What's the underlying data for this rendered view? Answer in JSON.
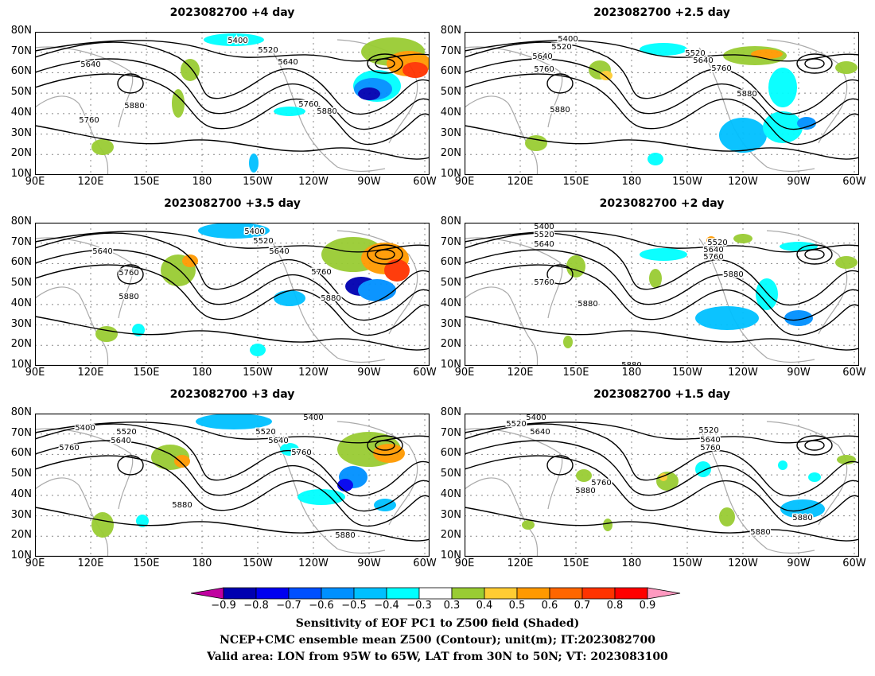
{
  "panels": [
    {
      "title": "2023082700  +4 day",
      "contour_labels": [
        "5400",
        "5520",
        "5640",
        "5640",
        "5880",
        "5760",
        "5760",
        "5880"
      ]
    },
    {
      "title": "2023082700  +2.5 day",
      "contour_labels": [
        "5400",
        "5520",
        "5640",
        "5760",
        "5520",
        "5640",
        "5760",
        "5880",
        "5880"
      ]
    },
    {
      "title": "2023082700  +3.5 day",
      "contour_labels": [
        "5400",
        "5520",
        "5640",
        "5640",
        "5760",
        "5880",
        "5760",
        "5880"
      ]
    },
    {
      "title": "2023082700  +2 day",
      "contour_labels": [
        "5400",
        "5520",
        "5640",
        "5520",
        "5640",
        "5760",
        "5760",
        "5880",
        "5880",
        "5880"
      ]
    },
    {
      "title": "2023082700  +3 day",
      "contour_labels": [
        "5400",
        "5520",
        "5640",
        "5760",
        "5520",
        "5640",
        "5400",
        "5760",
        "5880",
        "5880"
      ]
    },
    {
      "title": "2023082700  +1.5 day",
      "contour_labels": [
        "5520",
        "5400",
        "5640",
        "5520",
        "5640",
        "5760",
        "5760",
        "5880",
        "5880",
        "5880"
      ]
    }
  ],
  "axes": {
    "lat_ticks": [
      "80N",
      "70N",
      "60N",
      "50N",
      "40N",
      "30N",
      "20N",
      "10N"
    ],
    "lon_ticks": [
      "90E",
      "120E",
      "150E",
      "180",
      "150W",
      "120W",
      "90W",
      "60W"
    ]
  },
  "colorbar": {
    "ticks": [
      "−0.9",
      "−0.8",
      "−0.7",
      "−0.6",
      "−0.5",
      "−0.4",
      "−0.3",
      "0.3",
      "0.4",
      "0.5",
      "0.6",
      "0.7",
      "0.8",
      "0.9"
    ],
    "colors": [
      "#c000a0",
      "#0000b0",
      "#0000f0",
      "#0050ff",
      "#0090ff",
      "#00c0ff",
      "#00ffff",
      "#ffffff",
      "#99cc33",
      "#ffcc33",
      "#ff9900",
      "#ff6600",
      "#ff3300",
      "#ff0000",
      "#ff99c0"
    ]
  },
  "footer": {
    "line1": "Sensitivity of EOF PC1 to Z500 field (Shaded)",
    "line2": "NCEP+CMC ensemble mean Z500 (Contour); unit(m); IT:2023082700",
    "line3": "Valid area: LON from 95W to 65W, LAT from 30N to 50N; VT: 2023083100"
  }
}
